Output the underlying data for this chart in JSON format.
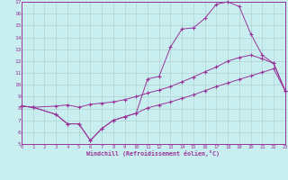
{
  "background_color": "#c8eef0",
  "line_color": "#993399",
  "grid_color": "#aacccc",
  "xlim": [
    0,
    23
  ],
  "ylim": [
    5,
    17
  ],
  "xticks": [
    0,
    1,
    2,
    3,
    4,
    5,
    6,
    7,
    8,
    9,
    10,
    11,
    12,
    13,
    14,
    15,
    16,
    17,
    18,
    19,
    20,
    21,
    22,
    23
  ],
  "yticks": [
    5,
    6,
    7,
    8,
    9,
    10,
    11,
    12,
    13,
    14,
    15,
    16,
    17
  ],
  "xlabel": "Windchill (Refroidissement éolien,°C)",
  "line1_x": [
    0,
    1,
    3,
    4,
    5,
    6,
    7,
    8,
    9,
    10,
    11,
    12,
    13,
    14,
    15,
    16,
    17,
    18,
    19,
    20,
    21,
    22,
    23
  ],
  "line1_y": [
    8.2,
    8.1,
    8.2,
    8.3,
    8.1,
    8.35,
    8.45,
    8.55,
    8.75,
    9.0,
    9.3,
    9.55,
    9.85,
    10.25,
    10.65,
    11.1,
    11.5,
    12.0,
    12.3,
    12.5,
    12.2,
    11.8,
    9.5
  ],
  "line2_x": [
    0,
    1,
    3,
    4,
    5,
    6,
    7,
    8,
    9,
    10,
    11,
    12,
    13,
    14,
    15,
    16,
    17,
    18,
    19,
    20,
    21,
    22,
    23
  ],
  "line2_y": [
    8.2,
    8.1,
    7.5,
    6.7,
    6.7,
    5.3,
    6.3,
    7.0,
    7.3,
    7.6,
    10.5,
    10.7,
    13.2,
    14.7,
    14.8,
    15.6,
    16.8,
    17.0,
    16.6,
    14.3,
    12.5,
    11.8,
    9.5
  ],
  "line3_x": [
    0,
    1,
    3,
    4,
    5,
    6,
    7,
    8,
    9,
    10,
    11,
    12,
    13,
    14,
    15,
    16,
    17,
    18,
    19,
    20,
    21,
    22,
    23
  ],
  "line3_y": [
    8.2,
    8.1,
    7.5,
    6.7,
    6.7,
    5.3,
    6.3,
    7.0,
    7.3,
    7.6,
    8.05,
    8.3,
    8.55,
    8.85,
    9.15,
    9.5,
    9.85,
    10.15,
    10.45,
    10.75,
    11.05,
    11.35,
    9.5
  ]
}
